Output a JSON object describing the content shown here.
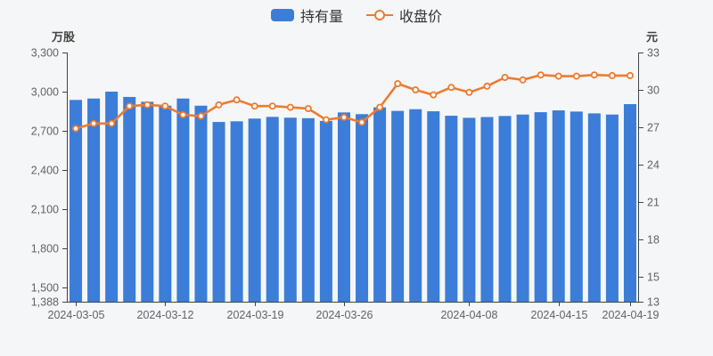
{
  "legend": {
    "holdings_label": "持有量",
    "close_label": "收盘价"
  },
  "colors": {
    "bar": "#3b7dd8",
    "line": "#ee7b30",
    "marker_fill": "#ffffff",
    "background": "#f5f6f7",
    "axis_line": "#444444",
    "tick_text": "#5f6368"
  },
  "chart_data": {
    "type": "bar",
    "subtype": "bar+line dual-axis",
    "title": "",
    "grid": "off",
    "legend_position": "top-center",
    "categories": [
      "2024-03-05",
      "2024-03-06",
      "2024-03-07",
      "2024-03-08",
      "2024-03-11",
      "2024-03-12",
      "2024-03-13",
      "2024-03-14",
      "2024-03-15",
      "2024-03-18",
      "2024-03-19",
      "2024-03-20",
      "2024-03-21",
      "2024-03-22",
      "2024-03-25",
      "2024-03-26",
      "2024-03-27",
      "2024-03-28",
      "2024-03-29",
      "2024-04-01",
      "2024-04-02",
      "2024-04-03",
      "2024-04-08",
      "2024-04-09",
      "2024-04-10",
      "2024-04-11",
      "2024-04-12",
      "2024-04-15",
      "2024-04-16",
      "2024-04-17",
      "2024-04-18",
      "2024-04-19"
    ],
    "series": [
      {
        "name": "持有量",
        "type": "bar",
        "axis": "left",
        "unit": "万股",
        "values": [
          2936,
          2947,
          3000,
          2959,
          2922,
          2892,
          2947,
          2892,
          2767,
          2772,
          2793,
          2806,
          2800,
          2796,
          2775,
          2840,
          2827,
          2879,
          2852,
          2865,
          2849,
          2815,
          2799,
          2805,
          2813,
          2824,
          2842,
          2856,
          2847,
          2833,
          2824,
          2904
        ]
      },
      {
        "name": "收盘价",
        "type": "line",
        "axis": "right",
        "unit": "元",
        "marker": "hollow-circle",
        "values": [
          26.9,
          27.3,
          27.3,
          28.7,
          28.8,
          28.7,
          28.0,
          27.9,
          28.8,
          29.2,
          28.7,
          28.7,
          28.6,
          28.5,
          27.6,
          27.8,
          27.4,
          28.6,
          30.5,
          30.0,
          29.6,
          30.2,
          29.8,
          30.3,
          31.0,
          30.8,
          31.2,
          31.1,
          31.1,
          31.2,
          31.15,
          31.15
        ]
      }
    ],
    "x_axis": {
      "labeled_indices": [
        0,
        5,
        10,
        15,
        22,
        27,
        31
      ],
      "labeled_categories": [
        "2024-03-05",
        "2024-03-12",
        "2024-03-19",
        "2024-03-26",
        "2024-04-08",
        "2024-04-15",
        "2024-04-19"
      ]
    },
    "y_left": {
      "title": "万股",
      "min": 1388,
      "max": 3300,
      "ticks": [
        3300,
        3000,
        2700,
        2400,
        2100,
        1800,
        1500,
        1388
      ],
      "tick_labels": [
        "3,300",
        "3,000",
        "2,700",
        "2,400",
        "2,100",
        "1,800",
        "1,500",
        "1,388"
      ]
    },
    "y_right": {
      "title": "元",
      "min": 13,
      "max": 33,
      "ticks": [
        33,
        30,
        27,
        24,
        21,
        18,
        15,
        13
      ],
      "tick_labels": [
        "33",
        "30",
        "27",
        "24",
        "21",
        "18",
        "15",
        "13"
      ]
    }
  }
}
